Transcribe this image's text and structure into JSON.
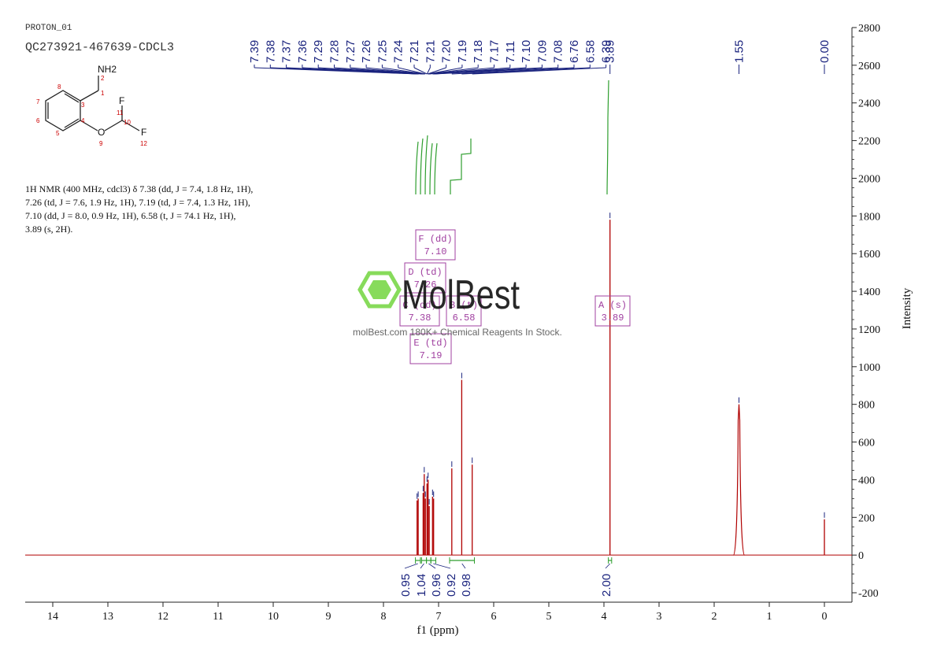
{
  "header": {
    "experiment": "PROTON_01",
    "sample": "QC273921-467639-CDCL3"
  },
  "structure": {
    "atoms": [
      {
        "label": "NH2"
      },
      {
        "label": "F"
      },
      {
        "label": "F"
      },
      {
        "label": "O"
      }
    ],
    "numbers": [
      "1",
      "2",
      "3",
      "4",
      "5",
      "6",
      "7",
      "8",
      "9",
      "10",
      "11",
      "12"
    ],
    "number_color": "#cc0000"
  },
  "nmr_description": "1H NMR (400 MHz, cdcl3) δ 7.38 (dd, J = 7.4, 1.8 Hz, 1H), 7.26 (td, J = 7.6, 1.9 Hz, 1H), 7.19 (td, J = 7.4, 1.3 Hz, 1H), 7.10 (dd, J = 8.0, 0.9 Hz, 1H), 6.58 (t, J = 74.1 Hz, 1H), 3.89 (s, 2H).",
  "watermark": {
    "brand": "MolBest",
    "tagline": "molBest.com 180K+ Chemical Reagents In Stock.",
    "color": "#7bd84a"
  },
  "chart_data": {
    "type": "line",
    "xlabel": "f1 (ppm)",
    "ylabel": "Intensity",
    "xlim": [
      14.5,
      -0.5
    ],
    "ylim": [
      -250,
      2800
    ],
    "x_ticks": [
      14,
      13,
      12,
      11,
      10,
      9,
      8,
      7,
      6,
      5,
      4,
      3,
      2,
      1,
      0
    ],
    "y_ticks": [
      -200,
      0,
      200,
      400,
      600,
      800,
      1000,
      1200,
      1400,
      1600,
      1800,
      2000,
      2200,
      2400,
      2600,
      2800
    ],
    "spectrum_color": "#b00000",
    "integral_color": "#2e9e2e",
    "peak_label_color": "#1a237e",
    "multiplet_color": "#a040a0",
    "peaks": [
      {
        "ppm": 7.39,
        "height": 290
      },
      {
        "ppm": 7.37,
        "height": 300
      },
      {
        "ppm": 7.28,
        "height": 330
      },
      {
        "ppm": 7.26,
        "height": 430
      },
      {
        "ppm": 7.24,
        "height": 300
      },
      {
        "ppm": 7.21,
        "height": 380
      },
      {
        "ppm": 7.19,
        "height": 400
      },
      {
        "ppm": 7.17,
        "height": 260
      },
      {
        "ppm": 7.11,
        "height": 310
      },
      {
        "ppm": 7.09,
        "height": 300
      },
      {
        "ppm": 6.76,
        "height": 460
      },
      {
        "ppm": 6.58,
        "height": 930
      },
      {
        "ppm": 6.39,
        "height": 480
      },
      {
        "ppm": 3.89,
        "height": 1780
      },
      {
        "ppm": 1.55,
        "height": 800
      },
      {
        "ppm": 0.0,
        "height": 190
      }
    ],
    "peak_labels": [
      "7.39",
      "7.38",
      "7.37",
      "7.36",
      "7.29",
      "7.28",
      "7.27",
      "7.26",
      "7.25",
      "7.24",
      "7.21",
      "7.21",
      "7.20",
      "7.19",
      "7.18",
      "7.17",
      "7.11",
      "7.10",
      "7.09",
      "7.08",
      "6.76",
      "6.58",
      "6.39",
      "3.89",
      "1.55",
      "0.00"
    ],
    "peak_label_ppm": [
      7.39,
      7.38,
      7.37,
      7.36,
      7.29,
      7.28,
      7.27,
      7.26,
      7.25,
      7.24,
      7.21,
      7.21,
      7.2,
      7.19,
      7.18,
      7.17,
      7.11,
      7.1,
      7.09,
      7.08,
      6.76,
      6.58,
      6.39,
      3.89,
      1.55,
      0.0
    ],
    "integrals": [
      {
        "from": 7.42,
        "to": 7.33,
        "value": "0.95"
      },
      {
        "from": 7.31,
        "to": 7.22,
        "value": "1.04"
      },
      {
        "from": 7.22,
        "to": 7.14,
        "value": "0.96"
      },
      {
        "from": 7.14,
        "to": 7.05,
        "value": "0.92"
      },
      {
        "from": 6.8,
        "to": 6.35,
        "value": "0.98"
      },
      {
        "from": 3.92,
        "to": 3.86,
        "value": "2.00"
      }
    ],
    "multiplets": [
      {
        "letter": "F",
        "type": "(dd)",
        "shift": "7.10"
      },
      {
        "letter": "D",
        "type": "(td)",
        "shift": "7.26"
      },
      {
        "letter": "C",
        "type": "(dd)",
        "shift": "7.38"
      },
      {
        "letter": "B",
        "type": "(t)",
        "shift": "6.58"
      },
      {
        "letter": "E",
        "type": "(td)",
        "shift": "7.19"
      },
      {
        "letter": "A",
        "type": "(s)",
        "shift": "3.89"
      }
    ]
  }
}
